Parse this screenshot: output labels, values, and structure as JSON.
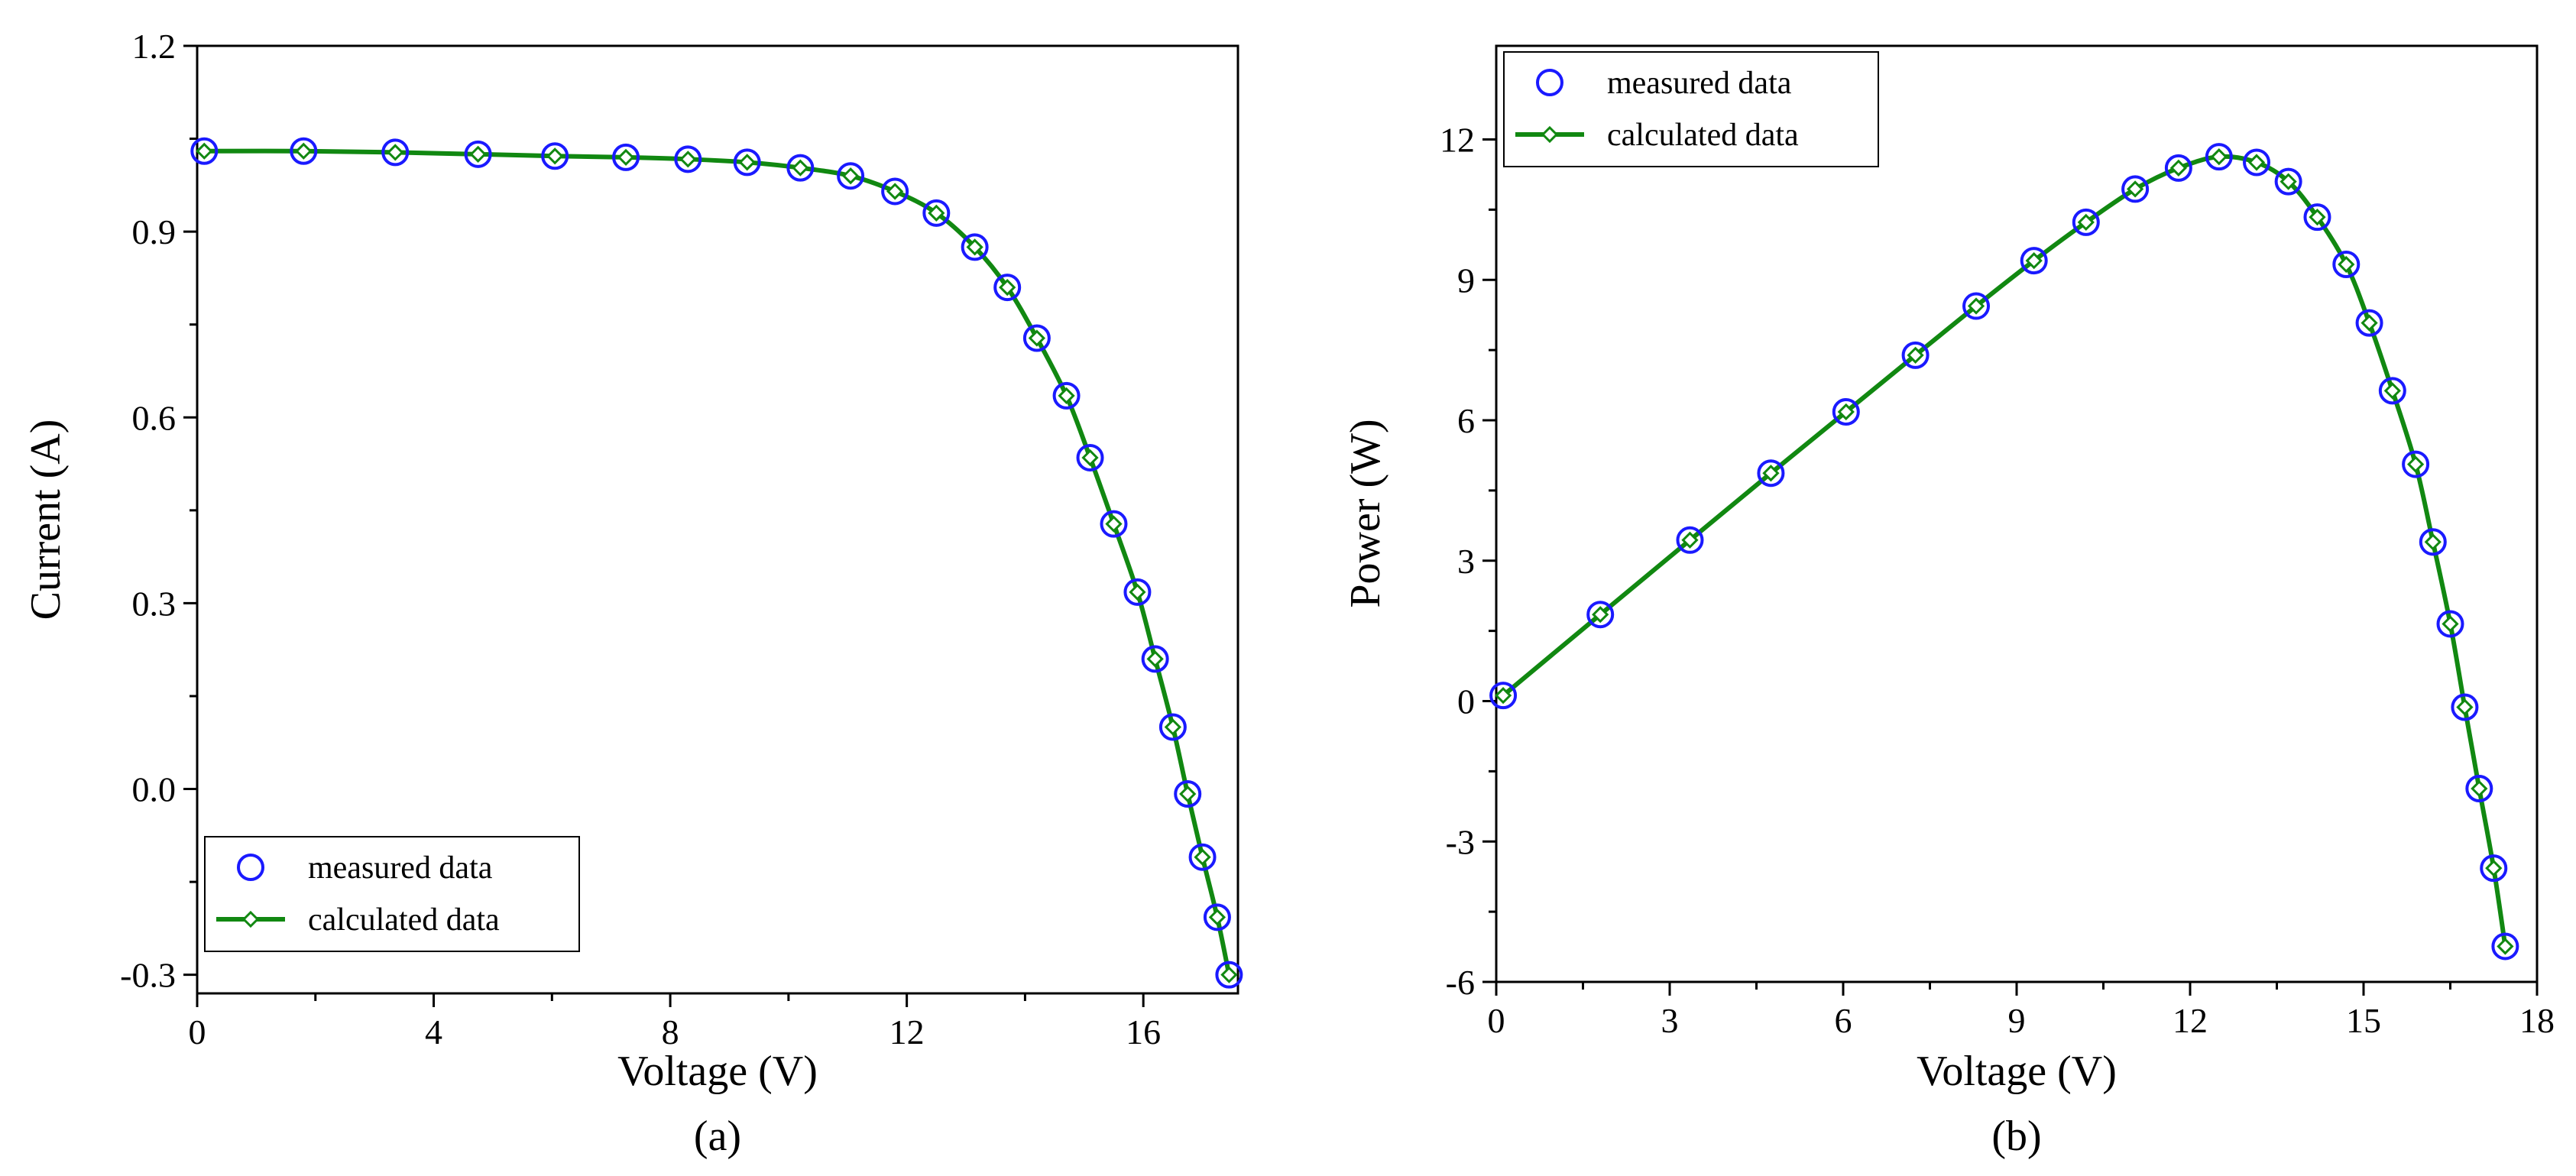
{
  "figure": {
    "panel_labels": [
      "(a)",
      "(b)"
    ]
  },
  "colors": {
    "measured": "#1a1aff",
    "calculated": "#118811",
    "axis": "#000000"
  },
  "chart_data": [
    {
      "type": "line",
      "panel_label": "(a)",
      "title": "",
      "xlabel": "Voltage (V)",
      "ylabel": "Current (A)",
      "xlim": [
        0,
        17.6
      ],
      "ylim": [
        -0.33,
        1.2
      ],
      "xticks": [
        "0",
        "4",
        "8",
        "12",
        "16"
      ],
      "xtick_values": [
        0,
        4,
        8,
        12,
        16
      ],
      "yticks": [
        "-0.3",
        "0.0",
        "0.3",
        "0.6",
        "0.9",
        "1.2"
      ],
      "ytick_values": [
        -0.3,
        0,
        0.3,
        0.6,
        0.9,
        1.2
      ],
      "legend_position": "bottom-left",
      "series": [
        {
          "name": "measured data",
          "style": "open-circle",
          "x": [
            0.12,
            1.8,
            3.35,
            4.75,
            6.05,
            7.25,
            8.3,
            9.3,
            10.2,
            11.05,
            11.8,
            12.5,
            13.15,
            13.7,
            14.2,
            14.7,
            15.1,
            15.5,
            15.9,
            16.2,
            16.5,
            16.75,
            17.0,
            17.25,
            17.45
          ],
          "y": [
            1.03,
            1.03,
            1.028,
            1.025,
            1.022,
            1.02,
            1.017,
            1.012,
            1.003,
            0.99,
            0.965,
            0.93,
            0.875,
            0.81,
            0.728,
            0.635,
            0.535,
            0.428,
            0.318,
            0.21,
            0.1,
            -0.008,
            -0.11,
            -0.207,
            -0.3
          ]
        },
        {
          "name": "calculated data",
          "style": "line-diamond",
          "x": [
            0.12,
            1.8,
            3.35,
            4.75,
            6.05,
            7.25,
            8.3,
            9.3,
            10.2,
            11.05,
            11.8,
            12.5,
            13.15,
            13.7,
            14.2,
            14.7,
            15.1,
            15.5,
            15.9,
            16.2,
            16.5,
            16.75,
            17.0,
            17.25,
            17.45
          ],
          "y": [
            1.03,
            1.03,
            1.028,
            1.025,
            1.022,
            1.02,
            1.017,
            1.012,
            1.003,
            0.99,
            0.965,
            0.93,
            0.875,
            0.81,
            0.728,
            0.635,
            0.535,
            0.428,
            0.318,
            0.21,
            0.1,
            -0.008,
            -0.11,
            -0.207,
            -0.3
          ]
        }
      ]
    },
    {
      "type": "line",
      "panel_label": "(b)",
      "title": "",
      "xlabel": "Voltage (V)",
      "ylabel": "Power (W)",
      "xlim": [
        0,
        18
      ],
      "ylim": [
        -6,
        14
      ],
      "xticks": [
        "0",
        "3",
        "6",
        "9",
        "12",
        "15",
        "18"
      ],
      "xtick_values": [
        0,
        3,
        6,
        9,
        12,
        15,
        18
      ],
      "yticks": [
        "-6",
        "-3",
        "0",
        "3",
        "6",
        "9",
        "12"
      ],
      "ytick_values": [
        -6,
        -3,
        0,
        3,
        6,
        9,
        12
      ],
      "legend_position": "top-left",
      "series": [
        {
          "name": "measured data",
          "style": "open-circle",
          "x": [
            0.12,
            1.8,
            3.35,
            4.75,
            6.05,
            7.25,
            8.3,
            9.3,
            10.2,
            11.05,
            11.8,
            12.5,
            13.15,
            13.7,
            14.2,
            14.7,
            15.1,
            15.5,
            15.9,
            16.2,
            16.5,
            16.75,
            17.0,
            17.25,
            17.45
          ],
          "y": [
            0.12,
            1.85,
            3.44,
            4.87,
            6.18,
            7.39,
            8.44,
            9.41,
            10.23,
            10.94,
            11.39,
            11.63,
            11.51,
            11.1,
            10.34,
            9.33,
            8.08,
            6.63,
            5.06,
            3.4,
            1.65,
            -0.13,
            -1.87,
            -3.57,
            -5.24
          ]
        },
        {
          "name": "calculated data",
          "style": "line-diamond",
          "x": [
            0.12,
            1.8,
            3.35,
            4.75,
            6.05,
            7.25,
            8.3,
            9.3,
            10.2,
            11.05,
            11.8,
            12.5,
            13.15,
            13.7,
            14.2,
            14.7,
            15.1,
            15.5,
            15.9,
            16.2,
            16.5,
            16.75,
            17.0,
            17.25,
            17.45
          ],
          "y": [
            0.12,
            1.85,
            3.44,
            4.87,
            6.18,
            7.39,
            8.44,
            9.41,
            10.23,
            10.94,
            11.39,
            11.63,
            11.51,
            11.1,
            10.34,
            9.33,
            8.08,
            6.63,
            5.06,
            3.4,
            1.65,
            -0.13,
            -1.87,
            -3.57,
            -5.24
          ]
        }
      ]
    }
  ]
}
